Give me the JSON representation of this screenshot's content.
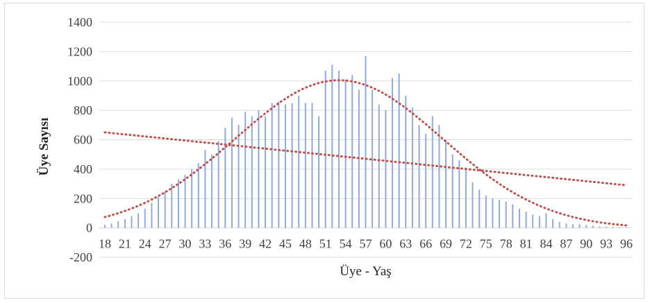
{
  "chart_data": {
    "type": "bar",
    "xlabel": "Üye - Yaş",
    "ylabel": "Üye Sayısı",
    "ylim": [
      -200,
      1400
    ],
    "yticks": [
      -200,
      0,
      200,
      400,
      600,
      800,
      1000,
      1200,
      1400
    ],
    "xtick_labels": [
      "18",
      "21",
      "24",
      "27",
      "30",
      "33",
      "36",
      "39",
      "42",
      "45",
      "48",
      "51",
      "54",
      "57",
      "60",
      "63",
      "66",
      "69",
      "72",
      "75",
      "78",
      "81",
      "84",
      "87",
      "90",
      "93",
      "96"
    ],
    "grid": "horizontal",
    "legend": "none",
    "x": [
      18,
      19,
      20,
      21,
      22,
      23,
      24,
      25,
      26,
      27,
      28,
      29,
      30,
      31,
      32,
      33,
      34,
      35,
      36,
      37,
      38,
      39,
      40,
      41,
      42,
      43,
      44,
      45,
      46,
      47,
      48,
      49,
      50,
      51,
      52,
      53,
      54,
      55,
      56,
      57,
      58,
      59,
      60,
      61,
      62,
      63,
      64,
      65,
      66,
      67,
      68,
      69,
      70,
      71,
      72,
      73,
      74,
      75,
      76,
      77,
      78,
      79,
      80,
      81,
      82,
      83,
      84,
      85,
      86,
      87,
      88,
      89,
      90,
      91,
      92,
      93,
      94,
      95,
      96
    ],
    "values": [
      20,
      30,
      45,
      60,
      80,
      100,
      130,
      170,
      210,
      250,
      300,
      330,
      360,
      400,
      440,
      530,
      500,
      590,
      680,
      750,
      700,
      790,
      760,
      800,
      760,
      850,
      860,
      840,
      850,
      900,
      850,
      850,
      760,
      1070,
      1110,
      1070,
      1010,
      1040,
      940,
      1170,
      940,
      840,
      800,
      1020,
      1050,
      900,
      820,
      700,
      640,
      760,
      700,
      600,
      500,
      460,
      410,
      310,
      260,
      220,
      200,
      190,
      180,
      160,
      130,
      110,
      90,
      80,
      100,
      60,
      40,
      30,
      25,
      25,
      20,
      15,
      10,
      8,
      6,
      4,
      2
    ],
    "series": [
      {
        "type": "bar",
        "color": "#8faadc"
      },
      {
        "type": "trend-polynomial",
        "color": "#c0504d",
        "style": "dotted"
      },
      {
        "type": "trend-linear",
        "color": "#c0504d",
        "style": "dotted",
        "start": 650,
        "end": 290
      }
    ]
  }
}
